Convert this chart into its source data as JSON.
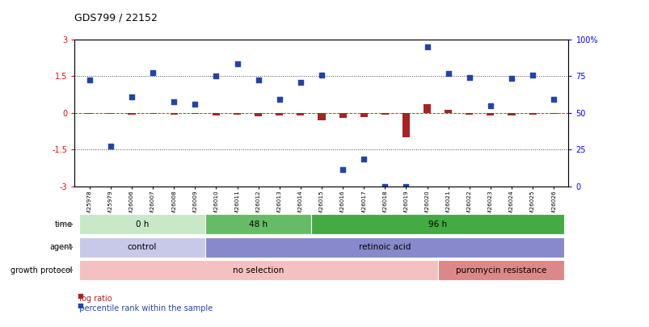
{
  "title": "GDS799 / 22152",
  "samples": [
    "GSM25978",
    "GSM25979",
    "GSM26006",
    "GSM26007",
    "GSM26008",
    "GSM26009",
    "GSM26010",
    "GSM26011",
    "GSM26012",
    "GSM26013",
    "GSM26014",
    "GSM26015",
    "GSM26016",
    "GSM26017",
    "GSM26018",
    "GSM26019",
    "GSM26020",
    "GSM26021",
    "GSM26022",
    "GSM26023",
    "GSM26024",
    "GSM26025",
    "GSM26026"
  ],
  "log_ratio": [
    -0.05,
    -0.05,
    -0.08,
    -0.05,
    -0.08,
    -0.05,
    -0.1,
    -0.08,
    -0.15,
    -0.12,
    -0.1,
    -0.3,
    -0.2,
    -0.18,
    -0.08,
    -1.0,
    0.35,
    0.12,
    -0.08,
    -0.12,
    -0.1,
    -0.08,
    -0.05
  ],
  "percentile": [
    1.35,
    -1.35,
    0.65,
    1.65,
    0.45,
    0.35,
    1.5,
    2.0,
    1.35,
    0.55,
    1.25,
    1.55,
    -2.3,
    -1.9,
    -3.0,
    -3.0,
    2.7,
    1.6,
    1.45,
    0.3,
    1.4,
    1.55,
    0.55
  ],
  "ylim": [
    -3,
    3
  ],
  "yticks_left": [
    -3,
    -1.5,
    0,
    1.5,
    3
  ],
  "hlines": [
    1.5,
    -1.5
  ],
  "time_groups": [
    {
      "label": "0 h",
      "start": 0,
      "end": 6,
      "color": "#c8e8c8"
    },
    {
      "label": "48 h",
      "start": 6,
      "end": 11,
      "color": "#66bb66"
    },
    {
      "label": "96 h",
      "start": 11,
      "end": 23,
      "color": "#44aa44"
    }
  ],
  "agent_groups": [
    {
      "label": "control",
      "start": 0,
      "end": 6,
      "color": "#c8c8e8"
    },
    {
      "label": "retinoic acid",
      "start": 6,
      "end": 23,
      "color": "#8888cc"
    }
  ],
  "growth_groups": [
    {
      "label": "no selection",
      "start": 0,
      "end": 17,
      "color": "#f4c0c0"
    },
    {
      "label": "puromycin resistance",
      "start": 17,
      "end": 23,
      "color": "#dd8888"
    }
  ],
  "bar_color_log": "#aa2222",
  "bar_color_pct": "#2244aa",
  "ref_line_color": "#cc3333",
  "bg_color": "#ffffff"
}
